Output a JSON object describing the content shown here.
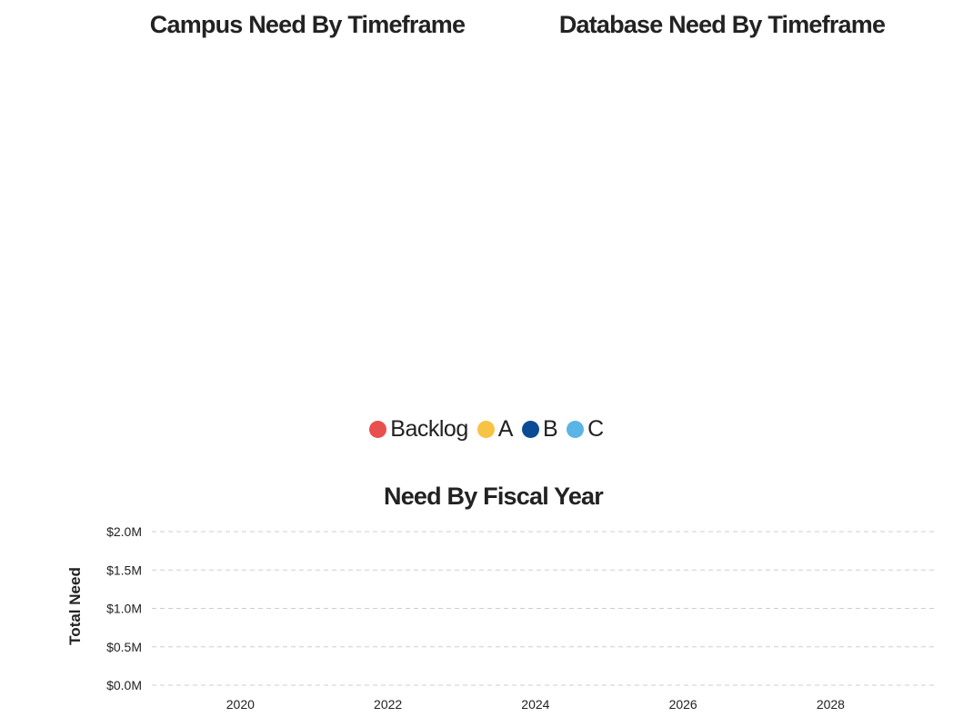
{
  "chart_data": [
    {
      "type": "pie",
      "title": "Campus Need By Timeframe",
      "labels": [],
      "values": []
    },
    {
      "type": "pie",
      "title": "Database Need By Timeframe",
      "labels": [],
      "values": []
    },
    {
      "type": "bar",
      "title": "Need By Fiscal Year",
      "ylabel": "Total Need",
      "xlabel": "",
      "x_ticks": [
        "2020",
        "2022",
        "2024",
        "2026",
        "2028"
      ],
      "x_tick_values": [
        2020,
        2022,
        2024,
        2026,
        2028
      ],
      "xlim": [
        2018.8,
        2029.4
      ],
      "y_ticks": [
        "$0.0M",
        "$0.5M",
        "$1.0M",
        "$1.5M",
        "$2.0M"
      ],
      "y_tick_values": [
        0,
        0.5,
        1.0,
        1.5,
        2.0
      ],
      "ylim": [
        0,
        2.0
      ],
      "grid": true,
      "series": []
    }
  ],
  "legend": {
    "items": [
      {
        "label": "Backlog",
        "color": "#e8504f"
      },
      {
        "label": "A",
        "color": "#f6c344"
      },
      {
        "label": "B",
        "color": "#0a4c94"
      },
      {
        "label": "C",
        "color": "#5ab4e5"
      }
    ]
  }
}
